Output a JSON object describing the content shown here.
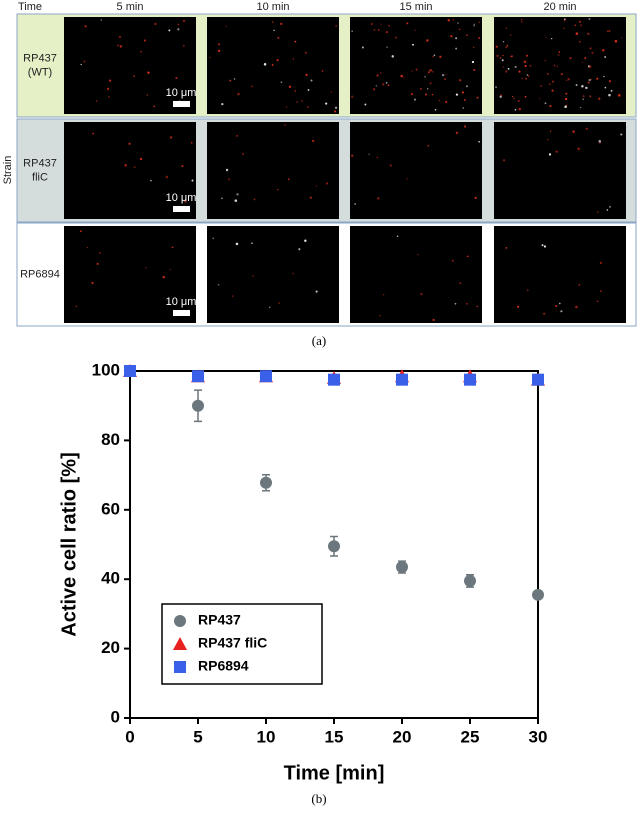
{
  "panel_a": {
    "time_label": "Time",
    "times": [
      "5 min",
      "10 min",
      "15 min",
      "20 min"
    ],
    "strain_label": "Strain",
    "rows": [
      [
        "RP437",
        "(WT)"
      ],
      [
        "RP437",
        "fliC"
      ],
      [
        "RP6894"
      ]
    ],
    "scale_bar": "10 μm",
    "caption": "(a)"
  },
  "chart_data": {
    "type": "scatter",
    "caption": "(b)",
    "x_label": "Time [min]",
    "y_label": "Active cell ratio [%]",
    "x": [
      0,
      5,
      10,
      15,
      20,
      25,
      30
    ],
    "series": [
      {
        "name": "RP437",
        "color": "#6b777c",
        "marker": "circle",
        "values": [
          100,
          90,
          67.8,
          49.5,
          43.5,
          39.5,
          35.5
        ],
        "errors": [
          null,
          4.5,
          2.3,
          2.8,
          1.7,
          1.8,
          null
        ]
      },
      {
        "name": "RP437 fliC",
        "color": "#e8201e",
        "marker": "triangle",
        "values": [
          100,
          98.5,
          98.5,
          98,
          98.5,
          98.5,
          97.5
        ],
        "errors": [
          null,
          null,
          null,
          null,
          null,
          null,
          null
        ]
      },
      {
        "name": "RP6894",
        "color": "#3a5fe8",
        "marker": "square",
        "values": [
          100,
          98.5,
          98.5,
          97.5,
          97.5,
          97.5,
          97.5
        ],
        "errors": [
          null,
          null,
          null,
          null,
          null,
          null,
          null
        ]
      }
    ],
    "xlim": [
      0,
      30
    ],
    "xticks": [
      0,
      5,
      10,
      15,
      20,
      25,
      30
    ],
    "ylim": [
      0,
      100
    ],
    "yticks": [
      0,
      20,
      40,
      60,
      80,
      100
    ],
    "legend": "lower left"
  }
}
